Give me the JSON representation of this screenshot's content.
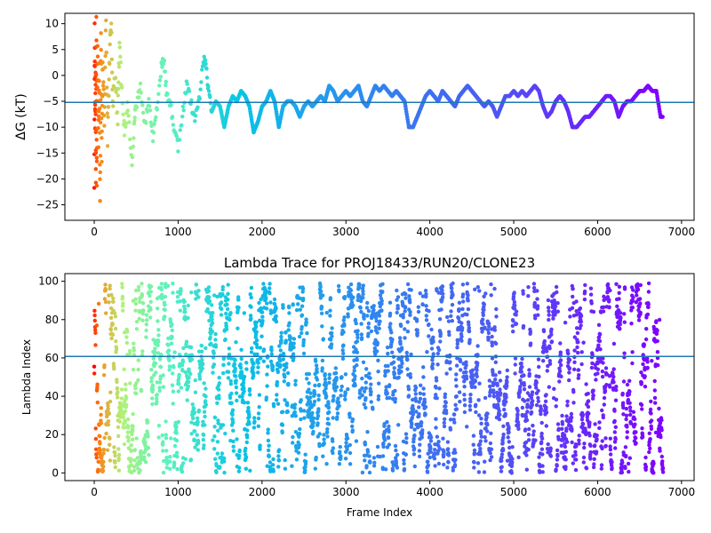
{
  "colors": {
    "reference_line": "#1f77b4",
    "colormap": "rainbow",
    "colormap_stops": [
      "#ff0000",
      "#ff7f0e",
      "#b0f27a",
      "#5af2c0",
      "#08c2e6",
      "#2a90ee",
      "#4a5cf3",
      "#8000ff"
    ]
  },
  "chart_data": [
    {
      "type": "scatter",
      "title": "",
      "xlabel": "",
      "ylabel": "ΔG (kT)",
      "xlim": [
        -350,
        7150
      ],
      "ylim": [
        -28,
        12
      ],
      "xticks": [
        0,
        1000,
        2000,
        3000,
        4000,
        5000,
        6000,
        7000
      ],
      "xtick_labels": [
        "0",
        "1000",
        "2000",
        "3000",
        "4000",
        "5000",
        "6000",
        "7000"
      ],
      "yticks": [
        -25,
        -20,
        -15,
        -10,
        -5,
        0,
        5,
        10
      ],
      "ytick_labels": [
        "−25",
        "−20",
        "−15",
        "−10",
        "−5",
        "0",
        "5",
        "10"
      ],
      "hline": -5.2,
      "color_by": "frame index (rainbow colormap, red early to violet late)",
      "series": [
        {
          "values_description": "free energy estimate per frame",
          "keypoints": [
            [
              0,
              -28
            ],
            [
              5,
              10
            ],
            [
              10,
              -10
            ],
            [
              15,
              0
            ],
            [
              20,
              -20
            ],
            [
              25,
              12
            ],
            [
              30,
              -22
            ],
            [
              40,
              5
            ],
            [
              50,
              -12
            ],
            [
              60,
              2
            ],
            [
              70,
              -26
            ],
            [
              80,
              8
            ],
            [
              90,
              -15
            ],
            [
              100,
              3
            ],
            [
              120,
              -8
            ],
            [
              140,
              10
            ],
            [
              160,
              -12
            ],
            [
              180,
              2
            ],
            [
              200,
              12
            ],
            [
              220,
              -5
            ],
            [
              250,
              0
            ],
            [
              280,
              -8
            ],
            [
              300,
              5
            ],
            [
              330,
              -3
            ],
            [
              360,
              -12
            ],
            [
              400,
              -6
            ],
            [
              450,
              -18
            ],
            [
              480,
              -8
            ],
            [
              500,
              -6
            ],
            [
              550,
              -2
            ],
            [
              600,
              -10
            ],
            [
              650,
              -5
            ],
            [
              700,
              -12
            ],
            [
              750,
              -6
            ],
            [
              800,
              2
            ],
            [
              830,
              3
            ],
            [
              860,
              -3
            ],
            [
              900,
              -5
            ],
            [
              950,
              -10
            ],
            [
              1000,
              -14
            ],
            [
              1050,
              -8
            ],
            [
              1100,
              -2
            ],
            [
              1150,
              -5
            ],
            [
              1200,
              -9
            ],
            [
              1250,
              -5
            ],
            [
              1300,
              3
            ],
            [
              1330,
              2
            ],
            [
              1360,
              -3
            ],
            [
              1400,
              -7
            ],
            [
              1450,
              -5
            ],
            [
              1500,
              -6
            ],
            [
              1550,
              -10
            ],
            [
              1600,
              -6
            ],
            [
              1650,
              -4
            ],
            [
              1700,
              -5
            ],
            [
              1750,
              -3
            ],
            [
              1800,
              -4
            ],
            [
              1850,
              -6
            ],
            [
              1900,
              -11
            ],
            [
              1950,
              -9
            ],
            [
              2000,
              -6
            ],
            [
              2050,
              -5
            ],
            [
              2100,
              -3
            ],
            [
              2150,
              -5
            ],
            [
              2200,
              -10
            ],
            [
              2250,
              -6
            ],
            [
              2300,
              -5
            ],
            [
              2350,
              -5
            ],
            [
              2400,
              -6
            ],
            [
              2450,
              -8
            ],
            [
              2500,
              -6
            ],
            [
              2550,
              -5
            ],
            [
              2600,
              -6
            ],
            [
              2650,
              -5
            ],
            [
              2700,
              -4
            ],
            [
              2750,
              -5
            ],
            [
              2800,
              -2
            ],
            [
              2850,
              -3
            ],
            [
              2900,
              -5
            ],
            [
              2950,
              -4
            ],
            [
              3000,
              -3
            ],
            [
              3050,
              -4
            ],
            [
              3100,
              -3
            ],
            [
              3150,
              -2
            ],
            [
              3200,
              -5
            ],
            [
              3250,
              -6
            ],
            [
              3300,
              -4
            ],
            [
              3350,
              -2
            ],
            [
              3400,
              -3
            ],
            [
              3450,
              -2
            ],
            [
              3500,
              -3
            ],
            [
              3550,
              -4
            ],
            [
              3600,
              -3
            ],
            [
              3650,
              -4
            ],
            [
              3700,
              -5
            ],
            [
              3750,
              -10
            ],
            [
              3800,
              -10
            ],
            [
              3850,
              -8
            ],
            [
              3900,
              -6
            ],
            [
              3950,
              -4
            ],
            [
              4000,
              -3
            ],
            [
              4050,
              -4
            ],
            [
              4100,
              -5
            ],
            [
              4150,
              -3
            ],
            [
              4200,
              -4
            ],
            [
              4250,
              -5
            ],
            [
              4300,
              -6
            ],
            [
              4350,
              -4
            ],
            [
              4400,
              -3
            ],
            [
              4450,
              -2
            ],
            [
              4500,
              -3
            ],
            [
              4550,
              -4
            ],
            [
              4600,
              -5
            ],
            [
              4650,
              -6
            ],
            [
              4700,
              -5
            ],
            [
              4750,
              -6
            ],
            [
              4800,
              -8
            ],
            [
              4850,
              -6
            ],
            [
              4900,
              -4
            ],
            [
              4950,
              -4
            ],
            [
              5000,
              -3
            ],
            [
              5050,
              -4
            ],
            [
              5100,
              -3
            ],
            [
              5150,
              -4
            ],
            [
              5200,
              -3
            ],
            [
              5250,
              -2
            ],
            [
              5300,
              -3
            ],
            [
              5350,
              -6
            ],
            [
              5400,
              -8
            ],
            [
              5450,
              -7
            ],
            [
              5500,
              -5
            ],
            [
              5550,
              -4
            ],
            [
              5600,
              -5
            ],
            [
              5650,
              -7
            ],
            [
              5700,
              -10
            ],
            [
              5750,
              -10
            ],
            [
              5800,
              -9
            ],
            [
              5850,
              -8
            ],
            [
              5900,
              -8
            ],
            [
              5950,
              -7
            ],
            [
              6000,
              -6
            ],
            [
              6050,
              -5
            ],
            [
              6100,
              -4
            ],
            [
              6150,
              -4
            ],
            [
              6200,
              -5
            ],
            [
              6250,
              -8
            ],
            [
              6300,
              -6
            ],
            [
              6350,
              -5
            ],
            [
              6400,
              -5
            ],
            [
              6450,
              -4
            ],
            [
              6500,
              -3
            ],
            [
              6550,
              -3
            ],
            [
              6600,
              -2
            ],
            [
              6650,
              -3
            ],
            [
              6700,
              -3
            ],
            [
              6750,
              -8
            ],
            [
              6780,
              -8
            ]
          ]
        }
      ]
    },
    {
      "type": "scatter",
      "title": "Lambda Trace for PROJ18433/RUN20/CLONE23",
      "xlabel": "Frame Index",
      "ylabel": "Lambda Index",
      "xlim": [
        -350,
        7150
      ],
      "ylim": [
        -4,
        104
      ],
      "xticks": [
        0,
        1000,
        2000,
        3000,
        4000,
        5000,
        6000,
        7000
      ],
      "xtick_labels": [
        "0",
        "1000",
        "2000",
        "3000",
        "4000",
        "5000",
        "6000",
        "7000"
      ],
      "yticks": [
        0,
        20,
        40,
        60,
        80,
        100
      ],
      "ytick_labels": [
        "0",
        "20",
        "40",
        "60",
        "80",
        "100"
      ],
      "hline": 60.8,
      "color_by": "frame index (rainbow colormap, red early to violet late)",
      "frame_range": [
        0,
        6780
      ],
      "lambda_range": [
        0,
        99
      ],
      "point_count": 3400
    }
  ]
}
